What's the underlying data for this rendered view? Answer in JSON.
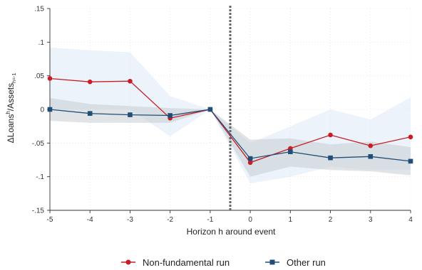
{
  "chart_data": {
    "type": "line",
    "x": [
      -5,
      -4,
      -3,
      -2,
      -1,
      0,
      1,
      2,
      3,
      4
    ],
    "xlabel": "Horizon h around event",
    "ylabel_main": "ΔLoans",
    "ylabel_sup": "h",
    "ylabel_mid": "/Assets",
    "ylabel_sub": "h=-1",
    "xlim": [
      -5,
      4
    ],
    "ylim": [
      -0.15,
      0.15
    ],
    "x_ticks": [
      "-5",
      "-4",
      "-3",
      "-2",
      "-1",
      "0",
      "1",
      "2",
      "3",
      "4"
    ],
    "y_ticks": [
      {
        "value": 0.15,
        "label": ".15"
      },
      {
        "value": 0.1,
        "label": ".1"
      },
      {
        "value": 0.05,
        "label": ".05"
      },
      {
        "value": 0,
        "label": "0"
      },
      {
        "value": -0.05,
        "label": "-.05"
      },
      {
        "value": -0.1,
        "label": "-.1"
      },
      {
        "value": -0.15,
        "label": "-.15"
      }
    ],
    "grid": true,
    "event_line_x": -0.5,
    "legend_position": "bottom",
    "series": [
      {
        "name": "Non-fundamental run",
        "color": "#c81d25",
        "marker": "circle",
        "values": [
          0.046,
          0.041,
          0.042,
          -0.013,
          0.0,
          -0.079,
          -0.058,
          -0.038,
          -0.054,
          -0.041
        ],
        "ci_lower": [
          0.0,
          0.0,
          0.0,
          -0.04,
          0.0,
          -0.11,
          -0.1,
          -0.085,
          -0.09,
          -0.09
        ],
        "ci_upper": [
          0.092,
          0.088,
          0.085,
          0.02,
          0.0,
          -0.05,
          -0.025,
          0.0,
          -0.015,
          0.018
        ],
        "band_color": "#dce9f7"
      },
      {
        "name": "Other run",
        "color": "#1f4e79",
        "marker": "square",
        "values": [
          0.0,
          -0.006,
          -0.008,
          -0.009,
          0.0,
          -0.073,
          -0.063,
          -0.072,
          -0.07,
          -0.077
        ],
        "ci_lower": [
          -0.017,
          -0.02,
          -0.02,
          -0.02,
          0.0,
          -0.1,
          -0.085,
          -0.09,
          -0.092,
          -0.098
        ],
        "ci_upper": [
          0.017,
          0.008,
          0.005,
          0.002,
          0.0,
          -0.045,
          -0.043,
          -0.052,
          -0.048,
          -0.056
        ],
        "band_color": "#c9cdd2"
      }
    ]
  }
}
